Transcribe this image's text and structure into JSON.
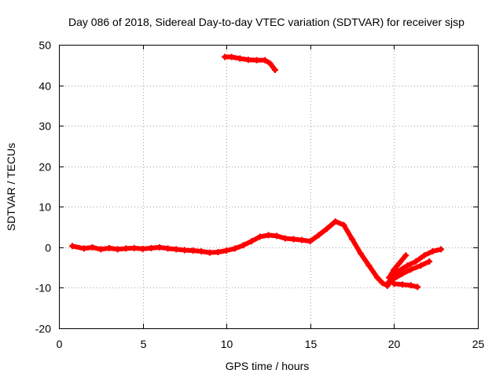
{
  "chart_data": {
    "type": "line",
    "title": "Day 086 of 2018, Sidereal Day-to-day VTEC variation (SDTVAR) for receiver sjsp",
    "xlabel": "GPS time / hours",
    "ylabel": "SDTVAR / TECUs",
    "xlim": [
      0,
      25
    ],
    "ylim": [
      -20,
      50
    ],
    "x_ticks": [
      0,
      5,
      10,
      15,
      20,
      25
    ],
    "y_ticks": [
      -20,
      -10,
      0,
      10,
      20,
      30,
      40,
      50
    ],
    "x_tick_labels": [
      "0",
      "5",
      "10",
      "15",
      "20",
      "25"
    ],
    "y_tick_labels": [
      "-20",
      "-10",
      "0",
      "10",
      "20",
      "30",
      "40",
      "50"
    ],
    "grid": true,
    "legend": "none",
    "series_color": "#ff0000",
    "series": [
      {
        "name": "main trace",
        "x": [
          0.8,
          1.5,
          2.0,
          2.5,
          3.0,
          3.5,
          4.0,
          4.5,
          5.0,
          5.5,
          6.0,
          6.5,
          7.0,
          7.5,
          8.0,
          8.5,
          9.0,
          9.5,
          10.0,
          10.5,
          11.0,
          11.5,
          12.0,
          12.5,
          13.0,
          13.5,
          14.0,
          14.5,
          15.0,
          15.5,
          16.0,
          16.5,
          17.0,
          17.5,
          18.0,
          18.5,
          19.0,
          19.3,
          19.6,
          19.8,
          20.0
        ],
        "y": [
          0.3,
          -0.3,
          0.0,
          -0.5,
          -0.2,
          -0.5,
          -0.3,
          -0.2,
          -0.4,
          -0.2,
          0.0,
          -0.3,
          -0.5,
          -0.7,
          -0.8,
          -1.0,
          -1.3,
          -1.2,
          -0.8,
          -0.3,
          0.5,
          1.5,
          2.6,
          3.0,
          2.8,
          2.2,
          2.0,
          1.8,
          1.5,
          3.0,
          4.6,
          6.4,
          5.5,
          2.0,
          -1.5,
          -4.5,
          -7.5,
          -8.8,
          -9.5,
          -8.5,
          -7.0
        ]
      },
      {
        "name": "upper segment",
        "x": [
          9.9,
          10.3,
          10.8,
          11.3,
          11.8,
          12.3,
          12.6,
          12.9
        ],
        "y": [
          47.0,
          47.0,
          46.6,
          46.3,
          46.2,
          46.2,
          45.4,
          43.8
        ]
      },
      {
        "name": "branch a",
        "x": [
          19.6,
          20.2,
          20.8,
          21.3,
          21.8,
          22.3,
          22.8
        ],
        "y": [
          -9.0,
          -6.0,
          -4.5,
          -3.5,
          -2.0,
          -1.0,
          -0.5
        ]
      },
      {
        "name": "branch b",
        "x": [
          19.9,
          20.5,
          21.0,
          21.6,
          22.1
        ],
        "y": [
          -8.0,
          -6.5,
          -5.5,
          -4.5,
          -3.5
        ]
      },
      {
        "name": "branch c",
        "x": [
          19.7,
          20.0,
          20.3,
          20.7
        ],
        "y": [
          -7.5,
          -5.5,
          -4.0,
          -2.0
        ]
      },
      {
        "name": "branch d",
        "x": [
          20.0,
          20.5,
          21.0,
          21.4
        ],
        "y": [
          -9.0,
          -9.2,
          -9.4,
          -9.8
        ]
      }
    ]
  }
}
